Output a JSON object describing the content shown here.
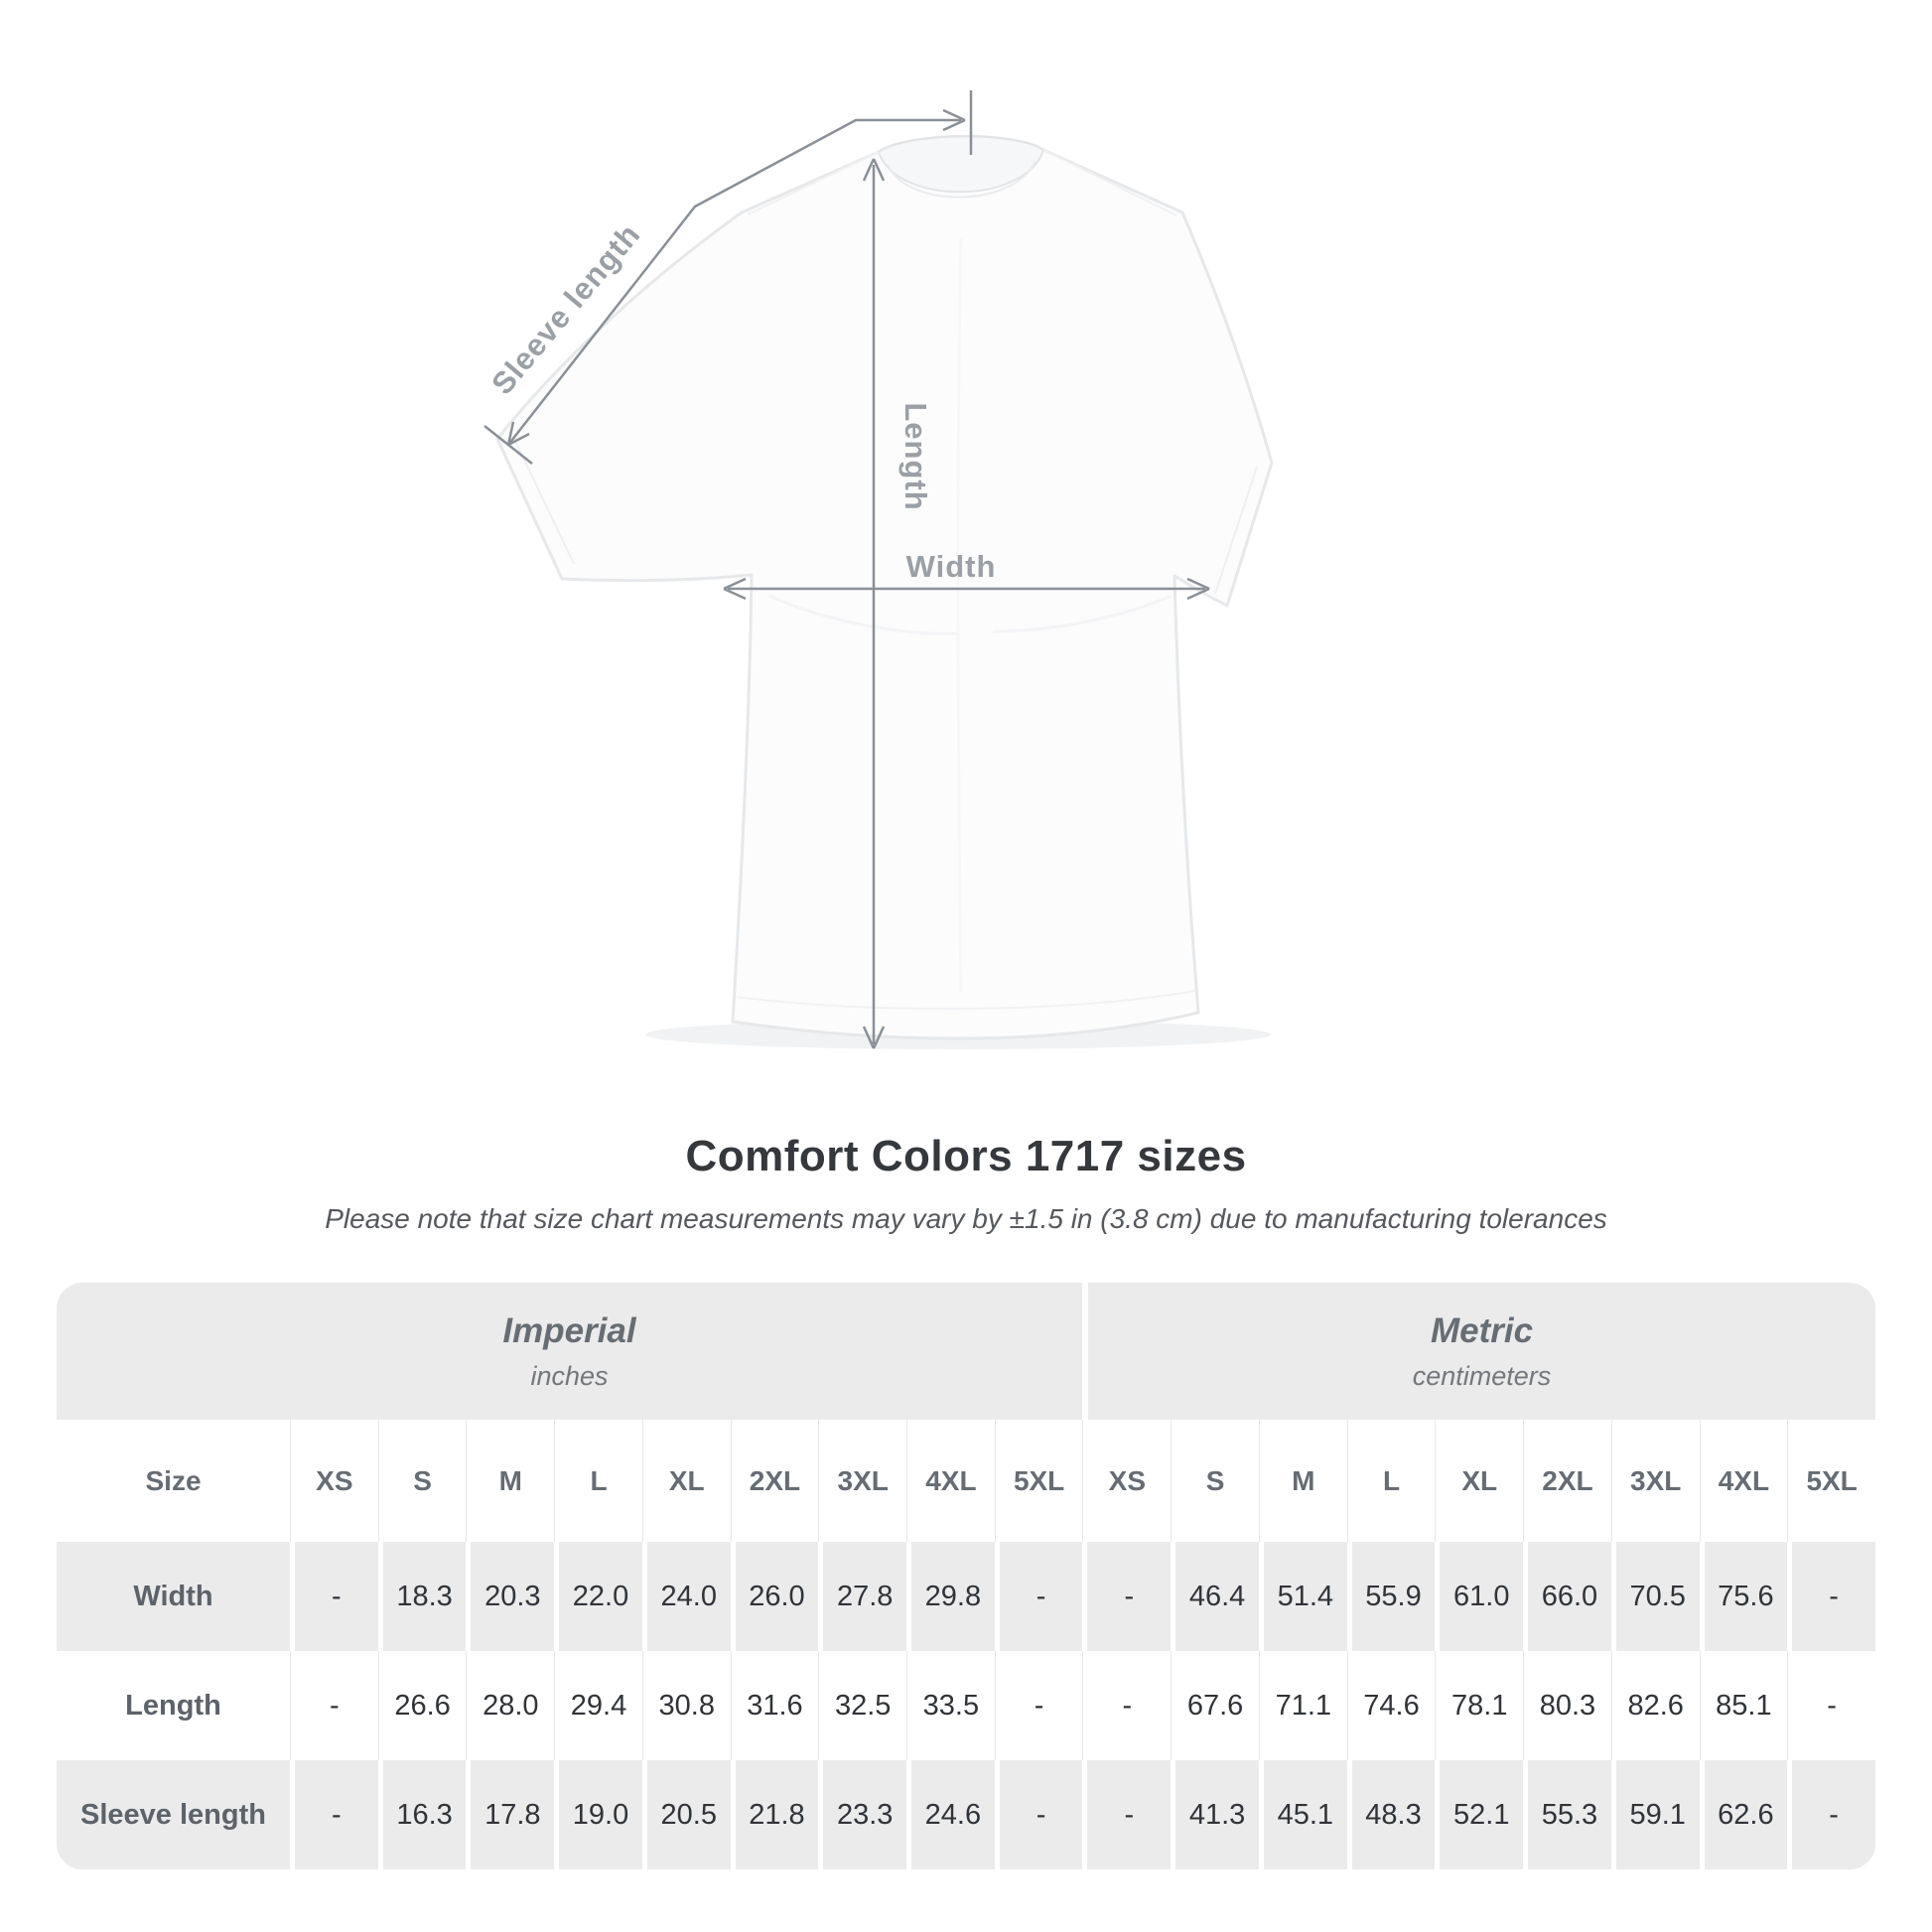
{
  "diagram": {
    "sleeve_label": "Sleeve length",
    "length_label": "Length",
    "width_label": "Width",
    "line_color": "#8a9097",
    "label_color": "#9aa0a5"
  },
  "heading": {
    "title": "Comfort Colors 1717 sizes",
    "subtitle": "Please note that size chart measurements may vary by ±1.5 in (3.8 cm) due to manufacturing tolerances"
  },
  "table": {
    "groups": [
      {
        "name": "Imperial",
        "unit": "inches"
      },
      {
        "name": "Metric",
        "unit": "centimeters"
      }
    ],
    "size_col_header": "Size",
    "sizes": [
      "XS",
      "S",
      "M",
      "L",
      "XL",
      "2XL",
      "3XL",
      "4XL",
      "5XL"
    ],
    "rows": [
      {
        "label": "Width",
        "imperial": [
          "-",
          "18.3",
          "20.3",
          "22.0",
          "24.0",
          "26.0",
          "27.8",
          "29.8",
          "-"
        ],
        "metric": [
          "-",
          "46.4",
          "51.4",
          "55.9",
          "61.0",
          "66.0",
          "70.5",
          "75.6",
          "-"
        ]
      },
      {
        "label": "Length",
        "imperial": [
          "-",
          "26.6",
          "28.0",
          "29.4",
          "30.8",
          "31.6",
          "32.5",
          "33.5",
          "-"
        ],
        "metric": [
          "-",
          "67.6",
          "71.1",
          "74.6",
          "78.1",
          "80.3",
          "82.6",
          "85.1",
          "-"
        ]
      },
      {
        "label": "Sleeve length",
        "imperial": [
          "-",
          "16.3",
          "17.8",
          "19.0",
          "20.5",
          "21.8",
          "23.3",
          "24.6",
          "-"
        ],
        "metric": [
          "-",
          "41.3",
          "45.1",
          "48.3",
          "52.1",
          "55.3",
          "59.1",
          "62.6",
          "-"
        ]
      }
    ],
    "colors": {
      "band": "#ebebec",
      "alt_row": "#ebebec",
      "value_text": "#303439",
      "header_text": "#666c73"
    }
  }
}
